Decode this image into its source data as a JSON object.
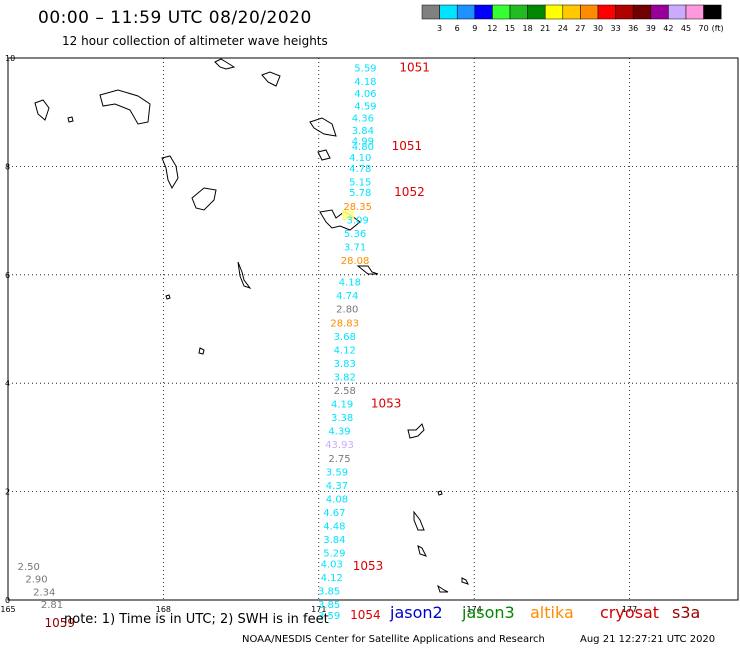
{
  "header": {
    "title": "00:00 – 11:59 UTC 08/20/2020",
    "subtitle": "12 hour collection of altimeter wave heights"
  },
  "colorbar": {
    "colors": [
      "#808080",
      "#00e5ff",
      "#1e90ff",
      "#0000ff",
      "#33ff33",
      "#22bb22",
      "#008800",
      "#ffff00",
      "#ffc800",
      "#ff8c00",
      "#ff0000",
      "#b00000",
      "#700000",
      "#990099",
      "#ccaaff",
      "#ff99dd",
      "#000000"
    ],
    "ticks": [
      "3",
      "6",
      "9",
      "12",
      "15",
      "18",
      "21",
      "24",
      "27",
      "30",
      "33",
      "36",
      "39",
      "42",
      "45",
      "70"
    ],
    "unit": "(ft)"
  },
  "footer": {
    "note": "note: 1) Time is in UTC; 2) SWH is in feet",
    "credit": "NOAA/NESDIS Center for Satellite Applications and Research",
    "stamp": "Aug 21 12:27:21 UTC 2020",
    "missions": [
      {
        "name": "jason2",
        "color": "#0000cc"
      },
      {
        "name": "jason3",
        "color": "#008800"
      },
      {
        "name": "altika",
        "color": "#ff8c00"
      },
      {
        "name": "cryosat",
        "color": "#cc0000"
      },
      {
        "name": "s3a",
        "color": "#990000"
      }
    ]
  },
  "chart_data": {
    "type": "scatter",
    "xlim": [
      165,
      180
    ],
    "ylim": [
      0,
      10
    ],
    "xticks": [
      "165",
      "168",
      "171",
      "174",
      "177"
    ],
    "yticks": [
      "0",
      "2",
      "4",
      "6",
      "8",
      "10"
    ],
    "grid": true,
    "observations": [
      {
        "lon": 171.9,
        "lat": 9.75,
        "swh": "5.59",
        "color": "#00e5ff"
      },
      {
        "lon": 171.9,
        "lat": 9.5,
        "swh": "4.18",
        "color": "#00e5ff"
      },
      {
        "lon": 171.9,
        "lat": 9.28,
        "swh": "4.06",
        "color": "#00e5ff"
      },
      {
        "lon": 171.9,
        "lat": 9.05,
        "swh": "4.59",
        "color": "#00e5ff"
      },
      {
        "lon": 171.85,
        "lat": 8.83,
        "swh": "4.36",
        "color": "#00e5ff"
      },
      {
        "lon": 171.85,
        "lat": 8.6,
        "swh": "3.84",
        "color": "#00e5ff"
      },
      {
        "lon": 171.85,
        "lat": 8.4,
        "swh": "4.99",
        "color": "#00e5ff"
      },
      {
        "lon": 171.85,
        "lat": 8.3,
        "swh": "4.80",
        "color": "#00e5ff"
      },
      {
        "lon": 171.8,
        "lat": 8.1,
        "swh": "4.10",
        "color": "#00e5ff"
      },
      {
        "lon": 171.8,
        "lat": 7.9,
        "swh": "4.78",
        "color": "#00e5ff"
      },
      {
        "lon": 171.8,
        "lat": 7.65,
        "swh": "5.15",
        "color": "#00e5ff"
      },
      {
        "lon": 171.8,
        "lat": 7.45,
        "swh": "5.78",
        "color": "#00e5ff"
      },
      {
        "lon": 171.75,
        "lat": 7.2,
        "swh": "28.35",
        "color": "#ff8c00"
      },
      {
        "lon": 171.75,
        "lat": 6.95,
        "swh": "3.09",
        "color": "#00e5ff"
      },
      {
        "lon": 171.7,
        "lat": 6.7,
        "swh": "5.36",
        "color": "#00e5ff"
      },
      {
        "lon": 171.7,
        "lat": 6.45,
        "swh": "3.71",
        "color": "#00e5ff"
      },
      {
        "lon": 171.7,
        "lat": 6.2,
        "swh": "28.08",
        "color": "#ff8c00"
      },
      {
        "lon": 171.6,
        "lat": 5.8,
        "swh": "4.18",
        "color": "#00e5ff"
      },
      {
        "lon": 171.55,
        "lat": 5.55,
        "swh": "4.74",
        "color": "#00e5ff"
      },
      {
        "lon": 171.55,
        "lat": 5.3,
        "swh": "2.80",
        "color": "#777777"
      },
      {
        "lon": 171.5,
        "lat": 5.05,
        "swh": "28.83",
        "color": "#ff8c00"
      },
      {
        "lon": 171.5,
        "lat": 4.8,
        "swh": "3.68",
        "color": "#00e5ff"
      },
      {
        "lon": 171.5,
        "lat": 4.55,
        "swh": "4.12",
        "color": "#00e5ff"
      },
      {
        "lon": 171.5,
        "lat": 4.3,
        "swh": "3.83",
        "color": "#00e5ff"
      },
      {
        "lon": 171.5,
        "lat": 4.05,
        "swh": "3.82",
        "color": "#00e5ff"
      },
      {
        "lon": 171.5,
        "lat": 3.8,
        "swh": "2.58",
        "color": "#777777"
      },
      {
        "lon": 171.45,
        "lat": 3.55,
        "swh": "4.19",
        "color": "#00e5ff"
      },
      {
        "lon": 171.45,
        "lat": 3.3,
        "swh": "3.38",
        "color": "#00e5ff"
      },
      {
        "lon": 171.4,
        "lat": 3.05,
        "swh": "4.39",
        "color": "#00e5ff"
      },
      {
        "lon": 171.4,
        "lat": 2.8,
        "swh": "43.93",
        "color": "#ccaaff"
      },
      {
        "lon": 171.4,
        "lat": 2.55,
        "swh": "2.75",
        "color": "#777777"
      },
      {
        "lon": 171.35,
        "lat": 2.3,
        "swh": "3.59",
        "color": "#00e5ff"
      },
      {
        "lon": 171.35,
        "lat": 2.05,
        "swh": "4.37",
        "color": "#00e5ff"
      },
      {
        "lon": 171.35,
        "lat": 1.8,
        "swh": "4.08",
        "color": "#00e5ff"
      },
      {
        "lon": 171.3,
        "lat": 1.55,
        "swh": "4.67",
        "color": "#00e5ff"
      },
      {
        "lon": 171.3,
        "lat": 1.3,
        "swh": "4.48",
        "color": "#00e5ff"
      },
      {
        "lon": 171.3,
        "lat": 1.05,
        "swh": "3.84",
        "color": "#00e5ff"
      },
      {
        "lon": 171.3,
        "lat": 0.8,
        "swh": "5.29",
        "color": "#00e5ff"
      },
      {
        "lon": 171.25,
        "lat": 0.6,
        "swh": "4.03",
        "color": "#00e5ff"
      },
      {
        "lon": 171.25,
        "lat": 0.35,
        "swh": "4.12",
        "color": "#00e5ff"
      },
      {
        "lon": 171.2,
        "lat": 0.1,
        "swh": "3.85",
        "color": "#00e5ff"
      },
      {
        "lon": 171.2,
        "lat": -0.15,
        "swh": "3.85",
        "color": "#00e5ff"
      },
      {
        "lon": 171.2,
        "lat": -0.35,
        "swh": "3.59",
        "color": "#00e5ff"
      },
      {
        "lon": 165.4,
        "lat": 0.55,
        "swh": "2.50",
        "color": "#777777"
      },
      {
        "lon": 165.55,
        "lat": 0.32,
        "swh": "2.90",
        "color": "#777777"
      },
      {
        "lon": 165.7,
        "lat": 0.08,
        "swh": "2.34",
        "color": "#777777"
      },
      {
        "lon": 165.85,
        "lat": -0.15,
        "swh": "2.81",
        "color": "#777777"
      }
    ],
    "passes": [
      {
        "lon": 172.85,
        "lat": 9.75,
        "label": "1051",
        "color": "#dd0000"
      },
      {
        "lon": 172.7,
        "lat": 8.3,
        "label": "1051",
        "color": "#dd0000"
      },
      {
        "lon": 172.75,
        "lat": 7.45,
        "label": "1052",
        "color": "#dd0000"
      },
      {
        "lon": 172.3,
        "lat": 3.55,
        "label": "1053",
        "color": "#dd0000"
      },
      {
        "lon": 171.95,
        "lat": 0.55,
        "label": "1053",
        "color": "#dd0000"
      },
      {
        "lon": 171.9,
        "lat": -0.35,
        "label": "1054",
        "color": "#dd0000"
      },
      {
        "lon": 166.0,
        "lat": -0.5,
        "label": "1059",
        "color": "#880000"
      }
    ]
  }
}
